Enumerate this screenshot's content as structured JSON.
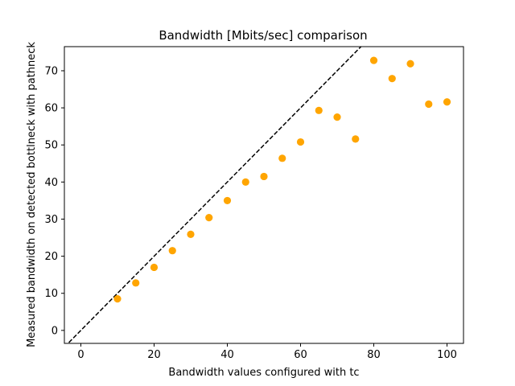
{
  "chart_data": {
    "type": "scatter",
    "title": "Bandwidth [Mbits/sec] comparison",
    "xlabel": "Bandwidth values configured with tc",
    "ylabel": "Measured bandwidth on detected bottlneck with pathneck",
    "xlim": [
      -4.5,
      104.5
    ],
    "ylim": [
      -3.5,
      76.5
    ],
    "xticks": [
      0,
      20,
      40,
      60,
      80,
      100
    ],
    "yticks": [
      0,
      10,
      20,
      30,
      40,
      50,
      60,
      70
    ],
    "grid": false,
    "legend": "none",
    "marker_color": "#ffa500",
    "reference_line": {
      "style": "dashed",
      "color": "#000000",
      "slope": 1,
      "intercept": 0
    },
    "series": [
      {
        "x": [
          10,
          15,
          20,
          25,
          30,
          35,
          40,
          45,
          50,
          55,
          60,
          65,
          70,
          75,
          80,
          85,
          90,
          95,
          100
        ],
        "y": [
          8.5,
          12.8,
          17.0,
          21.5,
          25.9,
          30.4,
          35.0,
          40.0,
          41.5,
          46.4,
          50.8,
          59.3,
          57.5,
          51.6,
          72.8,
          67.9,
          71.9,
          61.0,
          61.6
        ]
      }
    ]
  }
}
